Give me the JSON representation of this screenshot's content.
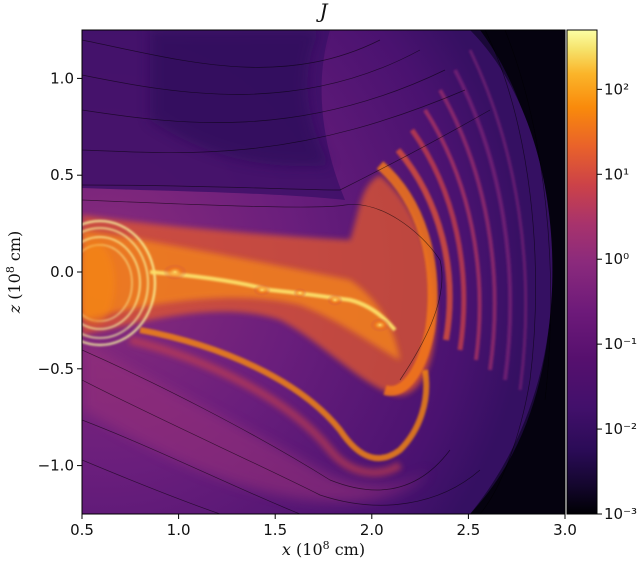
{
  "chart_data": {
    "type": "heatmap",
    "title": "J",
    "xlabel": "x (10^8 cm)",
    "ylabel": "z (10^8 cm)",
    "xlim": [
      0.5,
      3.0
    ],
    "ylim": [
      -1.25,
      1.25
    ],
    "x_ticks": [
      {
        "value": 0.5,
        "label": "0.5"
      },
      {
        "value": 1.0,
        "label": "1.0"
      },
      {
        "value": 1.5,
        "label": "1.5"
      },
      {
        "value": 2.0,
        "label": "2.0"
      },
      {
        "value": 2.5,
        "label": "2.5"
      },
      {
        "value": 3.0,
        "label": "3.0"
      }
    ],
    "y_ticks": [
      {
        "value": 1.0,
        "label": "1.0"
      },
      {
        "value": 0.5,
        "label": "0.5"
      },
      {
        "value": 0.0,
        "label": "0.0"
      },
      {
        "value": -0.5,
        "label": "−0.5"
      },
      {
        "value": -1.0,
        "label": "−1.0"
      }
    ],
    "colorbar": {
      "scale": "log",
      "range": [
        0.001,
        500
      ],
      "ticks": [
        {
          "value": 100,
          "label": "10²"
        },
        {
          "value": 10,
          "label": "10¹"
        },
        {
          "value": 1,
          "label": "10⁰"
        },
        {
          "value": 0.1,
          "label": "10⁻¹"
        },
        {
          "value": 0.01,
          "label": "10⁻²"
        },
        {
          "value": 0.001,
          "label": "10⁻³"
        }
      ]
    },
    "colormap": [
      "#000004",
      "#2a0b56",
      "#56106e",
      "#6e1a7a",
      "#8b2a7c",
      "#b8375f",
      "#dd513a",
      "#f3771a",
      "#fb9b06",
      "#fac228",
      "#f6d746",
      "#fcffa4"
    ],
    "grid": false
  },
  "labels": {
    "title": "J",
    "xlabel_var": "x",
    "xlabel_unit": "(10",
    "xlabel_exp": "8",
    "xlabel_end": " cm)",
    "ylabel_var": "z",
    "ylabel_unit": "(10",
    "ylabel_exp": "8",
    "ylabel_end": " cm)"
  }
}
